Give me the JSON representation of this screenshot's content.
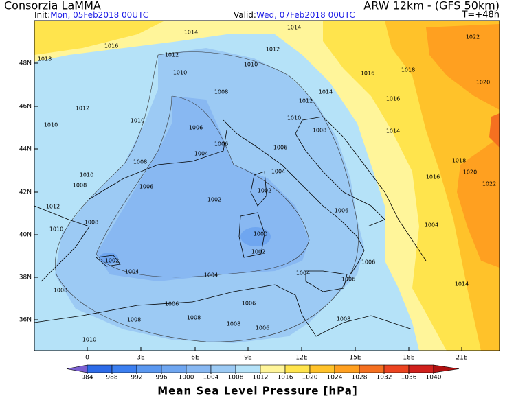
{
  "header": {
    "source": "Consorzia LaMMA",
    "init_label": "Init:",
    "init_time": "Mon, 05Feb2018 00UTC",
    "model": "ARW 12km - (GFS 50km)",
    "valid_label": "Valid:",
    "valid_time": "Wed, 07Feb2018 00UTC",
    "lead_time": "T=+48h"
  },
  "map": {
    "lat_labels": [
      "48N",
      "46N",
      "44N",
      "42N",
      "40N",
      "38N",
      "36N"
    ],
    "lon_labels": [
      "0",
      "3E",
      "6E",
      "9E",
      "12E",
      "15E",
      "18E",
      "21E"
    ],
    "isobar_labels": [
      "1014",
      "1014",
      "1016",
      "1012",
      "1022",
      "1018",
      "1012",
      "1010",
      "1016",
      "1018",
      "1010",
      "1020",
      "1008",
      "1014",
      "1012",
      "1016",
      "1012",
      "1010",
      "1010",
      "1006",
      "1008",
      "1014",
      "1010",
      "1006",
      "1004",
      "1006",
      "1008",
      "1018",
      "1004",
      "1020",
      "1010",
      "1006",
      "1016",
      "1022",
      "1008",
      "1002",
      "1012",
      "1002",
      "1006",
      "1008",
      "1004",
      "1010",
      "1000",
      "1002",
      "1002",
      "1006",
      "1004",
      "1004",
      "1004",
      "1006",
      "1014",
      "1008",
      "1006",
      "1006",
      "1008",
      "1008",
      "1008",
      "1008",
      "1006",
      "1010"
    ]
  },
  "colorbar": {
    "title": "Mean Sea Level Pressure [hPa]",
    "levels": [
      984,
      988,
      992,
      996,
      1000,
      1004,
      1008,
      1012,
      1016,
      1020,
      1024,
      1028,
      1032,
      1036,
      1040
    ],
    "colors": [
      "#7b5fd0",
      "#2d6be8",
      "#3c7ff0",
      "#5b98f0",
      "#6fa6f0",
      "#88b8f2",
      "#9ccaf4",
      "#b5e2f8",
      "#fff59a",
      "#ffe44d",
      "#ffc22a",
      "#ffa020",
      "#f57020",
      "#ec4420",
      "#d0201c",
      "#b01010"
    ]
  }
}
